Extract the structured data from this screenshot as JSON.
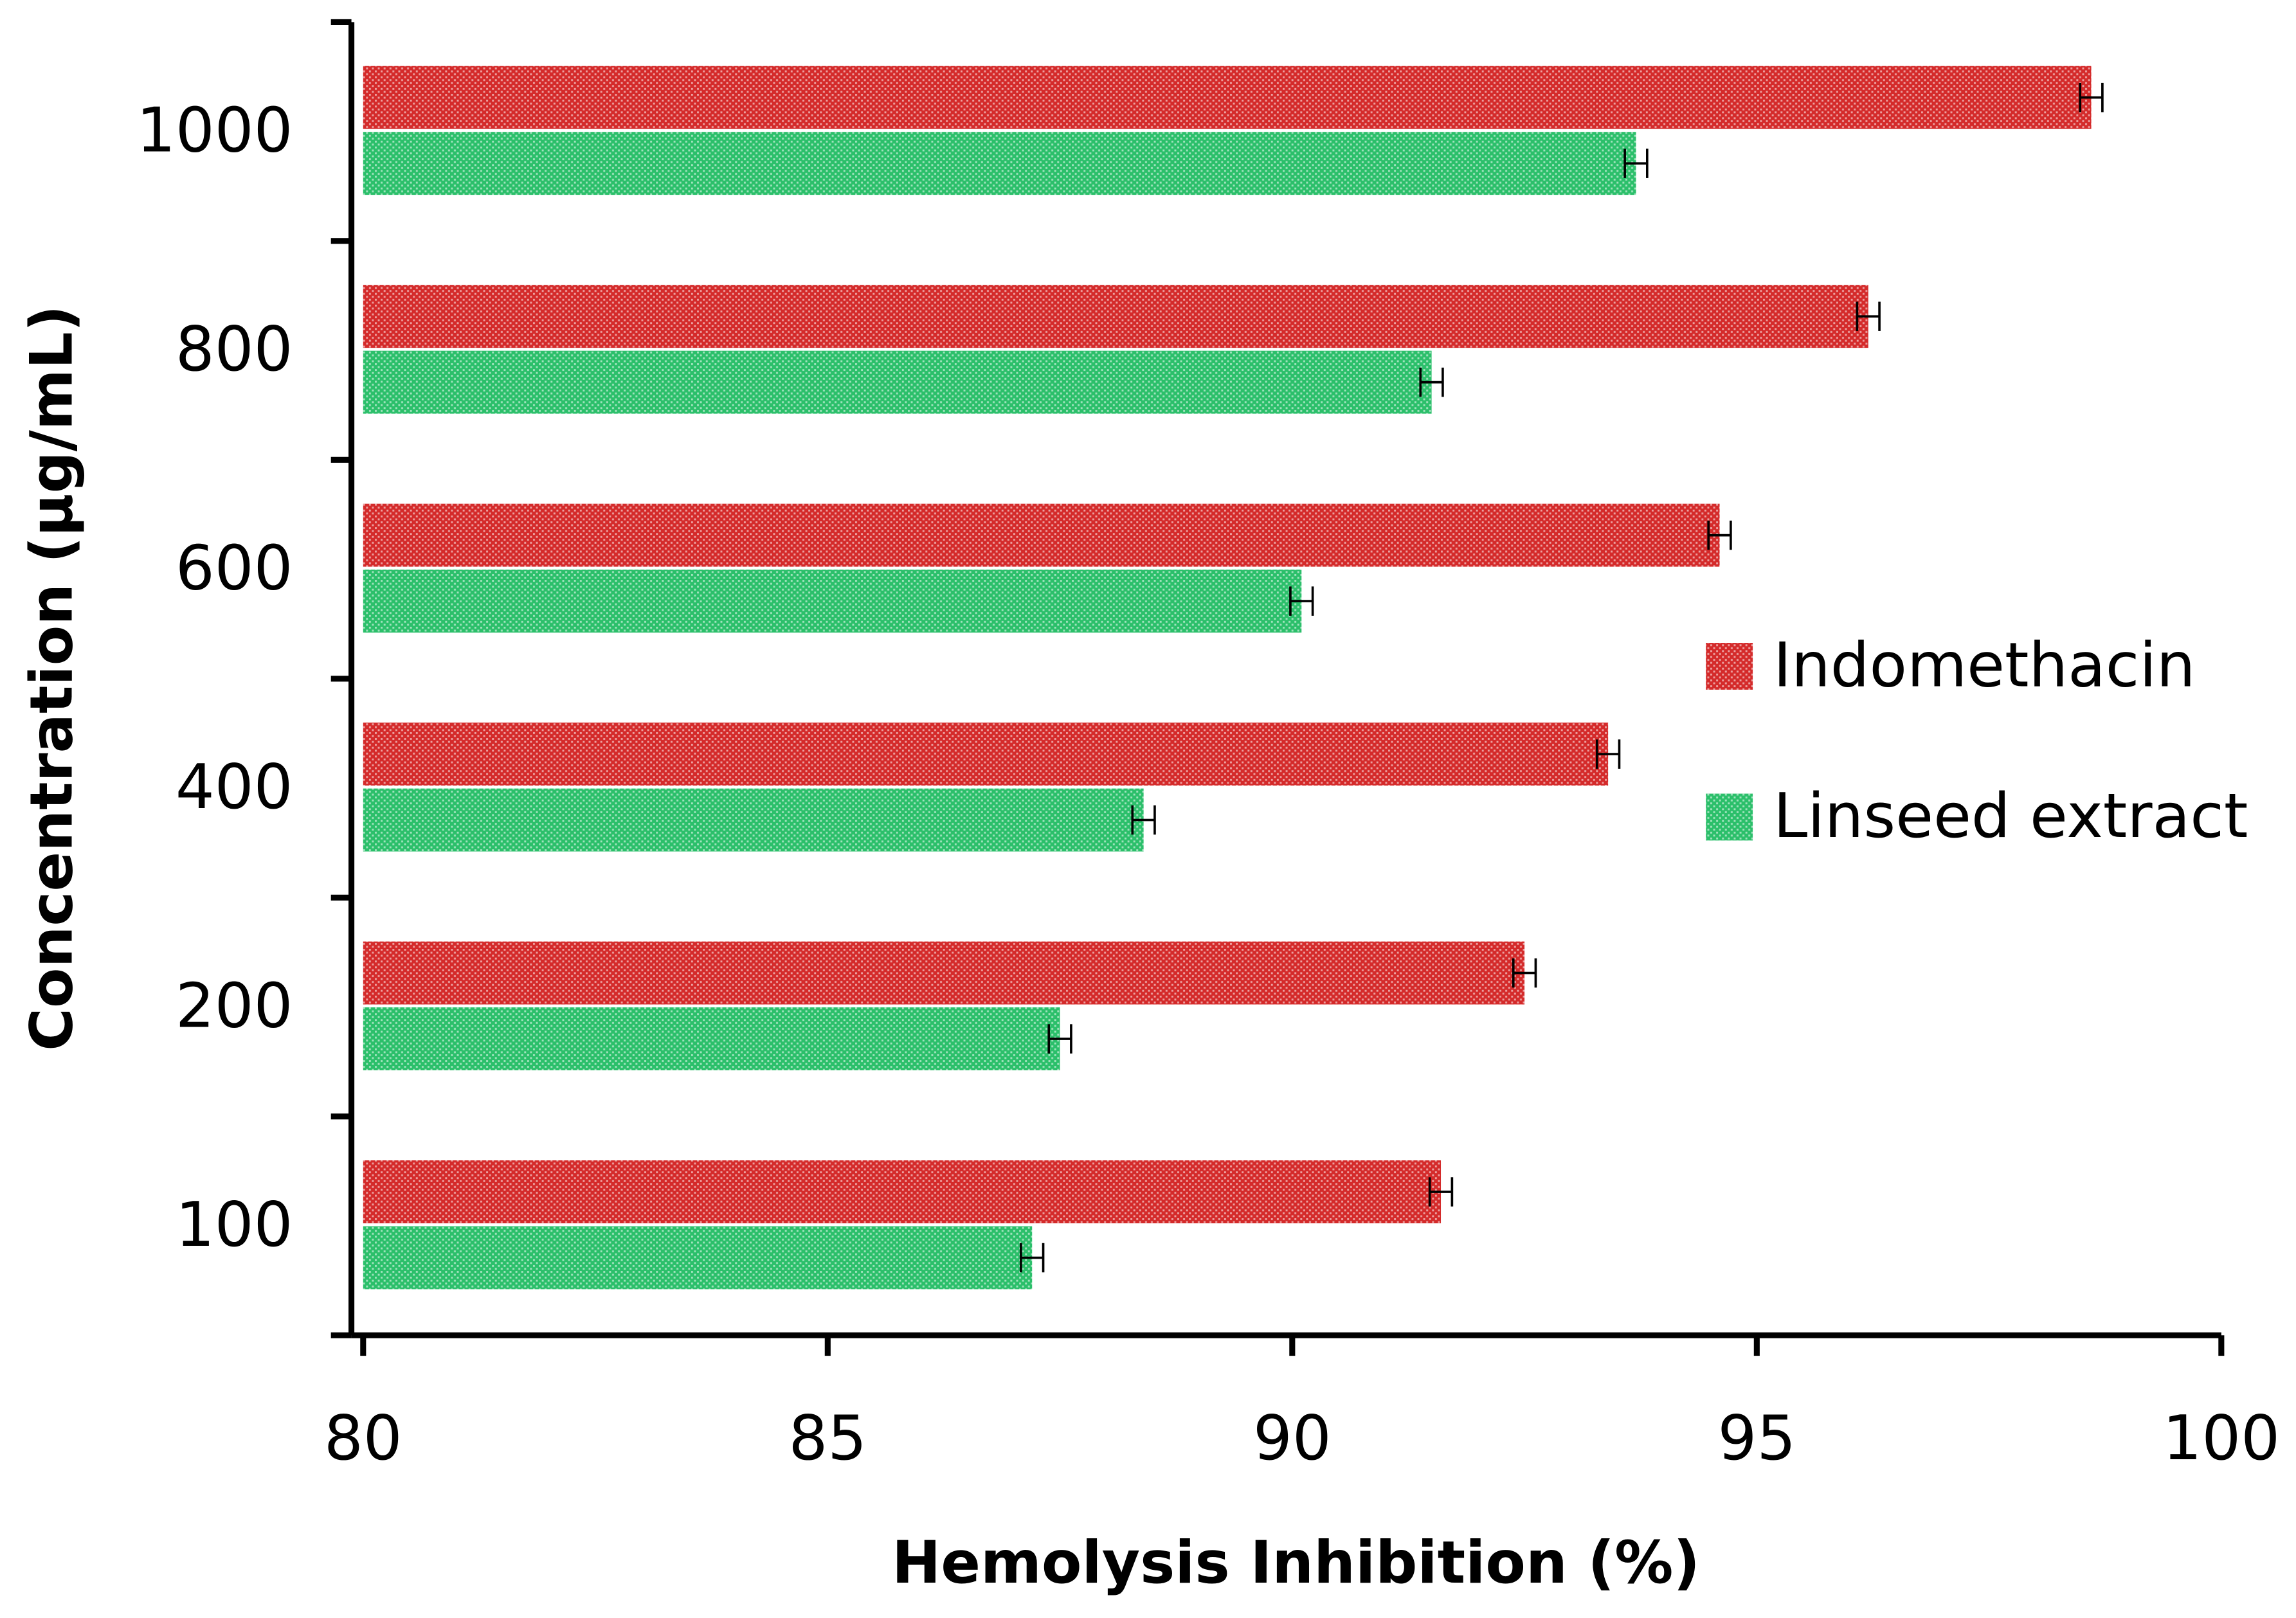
{
  "chart_data": {
    "type": "bar",
    "orientation": "horizontal",
    "x_label": "Hemolysis Inhibition (%)",
    "y_label": "Concentration (µg/mL)",
    "categories": [
      "100",
      "200",
      "400",
      "600",
      "800",
      "1000"
    ],
    "series": [
      {
        "name": "Indomethacin",
        "color": "#d42a2a",
        "values": [
          91.6,
          92.5,
          93.4,
          94.6,
          96.2,
          98.6
        ],
        "errors": [
          0.12,
          0.12,
          0.12,
          0.12,
          0.12,
          0.12
        ]
      },
      {
        "name": "Linseed extract",
        "color": "#2bbf6a",
        "values": [
          87.2,
          87.5,
          88.4,
          90.1,
          91.5,
          93.7
        ],
        "errors": [
          0.12,
          0.12,
          0.12,
          0.12,
          0.12,
          0.12
        ]
      }
    ],
    "xlim": [
      80,
      100
    ],
    "xticks": [
      80,
      85,
      90,
      95,
      100
    ],
    "grid": false,
    "legend": "right"
  }
}
